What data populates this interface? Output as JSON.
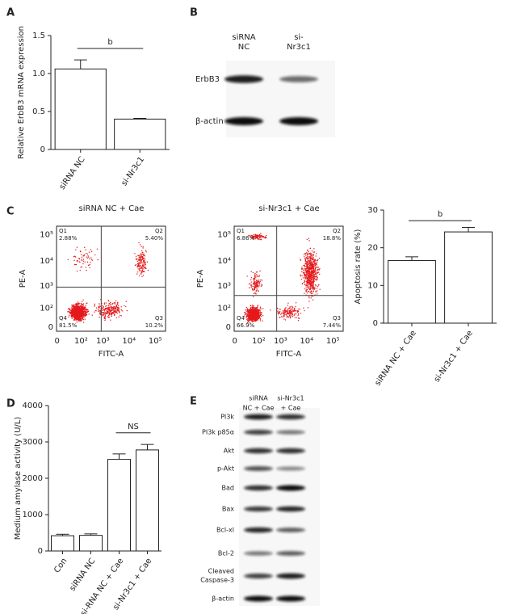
{
  "panel_labels": [
    "A",
    "B",
    "C",
    "D",
    "E"
  ],
  "chart_data": [
    {
      "type": "bar",
      "ylabel": "Relative ErbB3 mRNA expression",
      "categories": [
        "siRNA NC",
        "si-Nr3c1"
      ],
      "values": [
        1.06,
        0.4
      ],
      "errors": [
        0.12,
        0.01
      ],
      "ylim": [
        0,
        1.5
      ],
      "yticks": [
        0,
        0.5,
        {
          "value": 1,
          "label": "1.0"
        },
        {
          "value": 1.5,
          "label": "1.5"
        }
      ],
      "annotation": "b",
      "color": "#ffffff"
    },
    {
      "type": "bar",
      "ylabel": "Apoptosis rate (%)",
      "categories": [
        "siRNA NC + Cae",
        "si-Nr3c1 + Cae"
      ],
      "values": [
        16.6,
        24.2
      ],
      "errors": [
        1.0,
        1.2
      ],
      "ylim": [
        0,
        30
      ],
      "yticks": [
        0,
        10,
        20,
        30
      ],
      "annotation": "b",
      "color": "#ffffff"
    },
    {
      "type": "bar",
      "ylabel": "Medium amylase activity (U/L)",
      "categories": [
        "Con",
        "siRNA NC",
        "si-RNA NC + Cae",
        "si-Nr3c1 + Cae"
      ],
      "values": [
        420,
        430,
        2520,
        2780
      ],
      "errors": [
        40,
        40,
        150,
        150
      ],
      "ylim": [
        0,
        4000
      ],
      "yticks": [
        0,
        1000,
        2000,
        3000,
        4000
      ],
      "annotation": "NS",
      "color": "#ffffff"
    }
  ],
  "flow_plots": [
    {
      "title": "siRNA NC + Cae",
      "quadrants": [
        "Q1",
        "Q2",
        "Q3",
        "Q4"
      ],
      "percentages": [
        "2.88%",
        "5.40%",
        "10.2%",
        "81.5%"
      ]
    },
    {
      "title": "si-Nr3c1 + Cae",
      "quadrants": [
        "Q1",
        "Q2",
        "Q3",
        "Q4"
      ],
      "percentages": [
        "6.86%",
        "18.8%",
        "7.44%",
        "66.9%"
      ]
    }
  ],
  "flow_axes": {
    "xlabel": "FITC-A",
    "ylabel": "PE-A",
    "xticks": [
      "0",
      "10²",
      "10³",
      "10⁴",
      "10⁵"
    ],
    "yticks": [
      "0",
      "10²",
      "10³",
      "10⁴",
      "10⁵"
    ]
  },
  "blot_b": {
    "lanes": [
      [
        "siRNA",
        "NC"
      ],
      [
        "si-",
        "Nr3c1"
      ]
    ],
    "proteins": [
      [
        "ErbB3"
      ],
      [
        "β-actin"
      ]
    ]
  },
  "blot_e": {
    "lanes": [
      [
        "siRNA",
        "NC + Cae"
      ],
      [
        "si-Nr3c1",
        "+ Cae"
      ]
    ],
    "proteins": [
      [
        "PI3k"
      ],
      [
        "PI3k p85α"
      ],
      [
        "Akt"
      ],
      [
        "p-Akt"
      ],
      [
        "Bad"
      ],
      [
        "Bax"
      ],
      [
        "Bcl-xl"
      ],
      [
        "Bcl-2"
      ],
      [
        "Cleaved",
        "Caspase-3"
      ],
      [
        "β-actin"
      ]
    ]
  }
}
